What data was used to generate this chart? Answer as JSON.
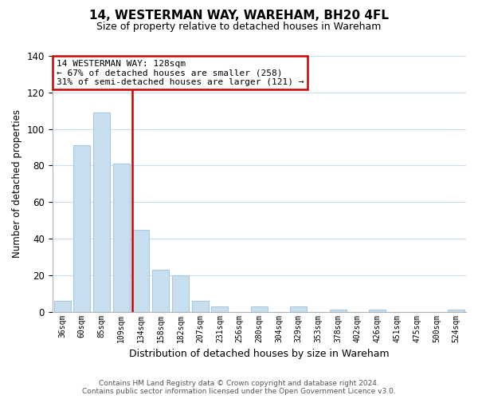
{
  "title": "14, WESTERMAN WAY, WAREHAM, BH20 4FL",
  "subtitle": "Size of property relative to detached houses in Wareham",
  "xlabel": "Distribution of detached houses by size in Wareham",
  "ylabel": "Number of detached properties",
  "bar_labels": [
    "36sqm",
    "60sqm",
    "85sqm",
    "109sqm",
    "134sqm",
    "158sqm",
    "182sqm",
    "207sqm",
    "231sqm",
    "256sqm",
    "280sqm",
    "304sqm",
    "329sqm",
    "353sqm",
    "378sqm",
    "402sqm",
    "426sqm",
    "451sqm",
    "475sqm",
    "500sqm",
    "524sqm"
  ],
  "bar_values": [
    6,
    91,
    109,
    81,
    45,
    23,
    20,
    6,
    3,
    0,
    3,
    0,
    3,
    0,
    1,
    0,
    1,
    0,
    0,
    0,
    1
  ],
  "bar_color": "#c8dff0",
  "bar_edge_color": "#a8c8e0",
  "annotation_title": "14 WESTERMAN WAY: 128sqm",
  "annotation_line1": "← 67% of detached houses are smaller (258)",
  "annotation_line2": "31% of semi-detached houses are larger (121) →",
  "annotation_box_facecolor": "#ffffff",
  "annotation_box_edgecolor": "#cc0000",
  "vline_color": "#cc0000",
  "ylim": [
    0,
    140
  ],
  "yticks": [
    0,
    20,
    40,
    60,
    80,
    100,
    120,
    140
  ],
  "footer_line1": "Contains HM Land Registry data © Crown copyright and database right 2024.",
  "footer_line2": "Contains public sector information licensed under the Open Government Licence v3.0.",
  "bg_color": "#ffffff",
  "grid_color": "#ccdded"
}
